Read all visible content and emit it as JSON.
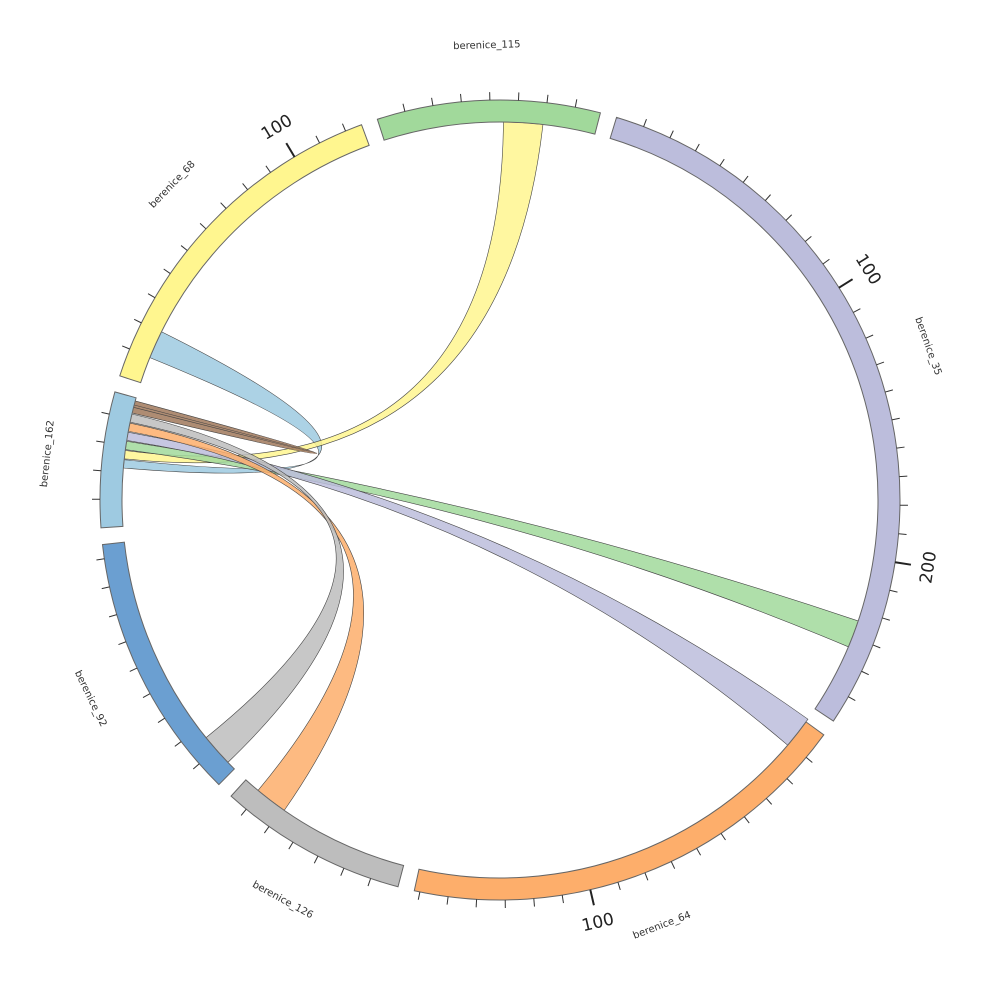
{
  "chart_data": {
    "type": "chord",
    "segments": [
      {
        "name": "berenice_162",
        "color": "#9ecae1",
        "length": 48
      },
      {
        "name": "berenice_68",
        "color": "#fff68f",
        "length": 126
      },
      {
        "name": "berenice_115",
        "color": "#a1d99b",
        "length": 79
      },
      {
        "name": "berenice_35",
        "color": "#bcbddc",
        "length": 260
      },
      {
        "name": "berenice_64",
        "color": "#fdae6b",
        "length": 162
      },
      {
        "name": "berenice_126",
        "color": "#bdbdbd",
        "length": 67
      },
      {
        "name": "berenice_92",
        "color": "#6b9fd1",
        "length": 95
      }
    ],
    "major_tick_labels": [
      {
        "segment": "berenice_68",
        "value": 100,
        "label": "100"
      },
      {
        "segment": "berenice_35",
        "value": 100,
        "label": "100"
      },
      {
        "segment": "berenice_35",
        "value": 200,
        "label": "200"
      },
      {
        "segment": "berenice_64",
        "value": 100,
        "label": "100"
      }
    ],
    "links": [
      {
        "from": "berenice_162",
        "to": "berenice_162",
        "color": "#9ecae1"
      },
      {
        "from": "berenice_162",
        "to": "berenice_68",
        "color": "#fff68f"
      },
      {
        "from": "berenice_162",
        "to": "berenice_115",
        "color": "#a1d99b"
      },
      {
        "from": "berenice_162",
        "to": "berenice_35",
        "color": "#bcbddc"
      },
      {
        "from": "berenice_162",
        "to": "berenice_64",
        "color": "#fdae6b"
      },
      {
        "from": "berenice_162",
        "to": "berenice_126",
        "color": "#bdbdbd"
      },
      {
        "from": "berenice_162",
        "to": "berenice_92",
        "color": "#a0785a"
      }
    ]
  }
}
